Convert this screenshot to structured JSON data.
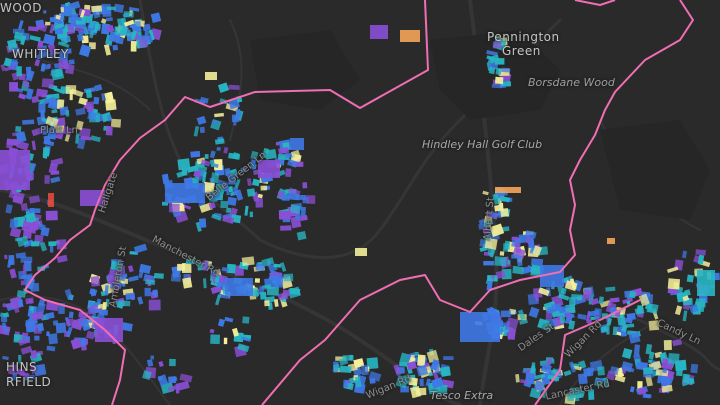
{
  "map": {
    "style": "dark basemap with building footprints colored by value (purple-blue-teal-yellow-orange), pink administrative boundary lines",
    "colors": {
      "background": "#2a2a2a",
      "roads": "#333333",
      "boundary": "#f06eb4",
      "purple": "#8a4fd6",
      "blue": "#3e79e6",
      "teal": "#27b6c4",
      "yellow": "#f4f09a",
      "orange": "#f5a45a",
      "red": "#e24a3a"
    },
    "labels": {
      "wood_top": "WOOD",
      "whitley": "WHITLEY",
      "pennington_1": "Pennington",
      "pennington_2": "Green",
      "borsdane_wood": "Borsdane Wood",
      "hindley_hall_golf_club": "Hindley Hall Golf Club",
      "platt_lane": "Platt Ln",
      "hallgate": "Hallgate",
      "belle_green_lane": "Belle Green Ln",
      "manchester_rd": "Manchester Rd",
      "ambleton_st": "Ambleton St",
      "wigan_rd_bottom": "Wigan Rd",
      "wigan_rd_right": "Wigan Rd",
      "tesco_extra": "Tesco Extra",
      "lancaster_rd": "Lancaster Rd",
      "candy_ln": "Candy Ln",
      "dales_st": "Dales St",
      "elmfield_1": "HINS",
      "elmfield_2": "RFIELD",
      "albert_st": "Albert St"
    }
  }
}
